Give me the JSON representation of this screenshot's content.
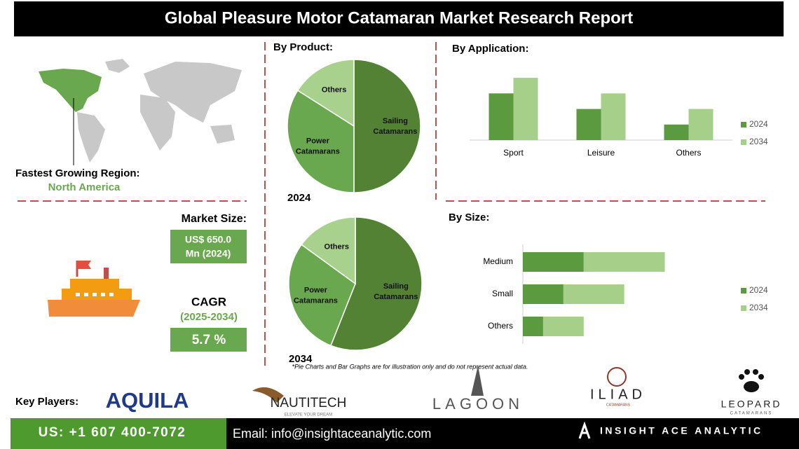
{
  "header": {
    "title": "Global Pleasure Motor Catamaran Market Research Report"
  },
  "region": {
    "label": "Fastest Growing Region:",
    "value": "North America"
  },
  "market_size": {
    "label": "Market Size:",
    "value_lines": [
      "US$ 650.0",
      "Mn (2024)"
    ]
  },
  "cagr": {
    "label": "CAGR",
    "period": "(2025-2034)",
    "value": "5.7 %"
  },
  "note": "*Pie Charts and Bar Graphs are for illustration only and do not represent actual data.",
  "key_players": {
    "label": "Key Players:",
    "players": [
      "AQUILA",
      "NAUTITECH",
      "LAGOON",
      "ILIAD",
      "LEOPARD"
    ],
    "taglines": [
      "ELEVATE YOUR DREAM",
      "CATAMARANS",
      "CATAMARANS"
    ]
  },
  "footer": {
    "phone": "US: +1 607 400-7072",
    "email": "Email: info@insightaceanalytic.com",
    "brand": "INSIGHT ACE ANALYTIC"
  },
  "chart_data": [
    {
      "type": "pie",
      "title": "By Product:",
      "subtitle": "2024",
      "categories": [
        "Sailing Catamarans",
        "Power Catamarans",
        "Others"
      ],
      "values": [
        50,
        34,
        16
      ],
      "colors": [
        "#548235",
        "#6aa84f",
        "#a9d18e"
      ]
    },
    {
      "type": "pie",
      "subtitle": "2034",
      "categories": [
        "Sailing Catamarans",
        "Power Catamarans",
        "Others"
      ],
      "values": [
        56,
        29,
        15
      ],
      "colors": [
        "#548235",
        "#6aa84f",
        "#a9d18e"
      ]
    },
    {
      "type": "bar",
      "title": "By Application:",
      "categories": [
        "Sport",
        "Leisure",
        "Others"
      ],
      "series": [
        {
          "name": "2024",
          "color": "#5b9a3e",
          "values": [
            6,
            4,
            2
          ]
        },
        {
          "name": "2034",
          "color": "#a6d08a",
          "values": [
            8,
            6,
            4
          ]
        }
      ],
      "ylim": [
        0,
        9
      ],
      "legend": "right"
    },
    {
      "type": "hbar",
      "stacked": true,
      "title": "By Size:",
      "categories": [
        "Medium",
        "Small",
        "Others"
      ],
      "series": [
        {
          "name": "2024",
          "color": "#5b9a3e",
          "values": [
            3,
            2,
            1
          ]
        },
        {
          "name": "2034",
          "color": "#a6d08a",
          "values": [
            4,
            3,
            2
          ]
        }
      ],
      "xlim": [
        0,
        7.5
      ],
      "legend": "right"
    }
  ]
}
